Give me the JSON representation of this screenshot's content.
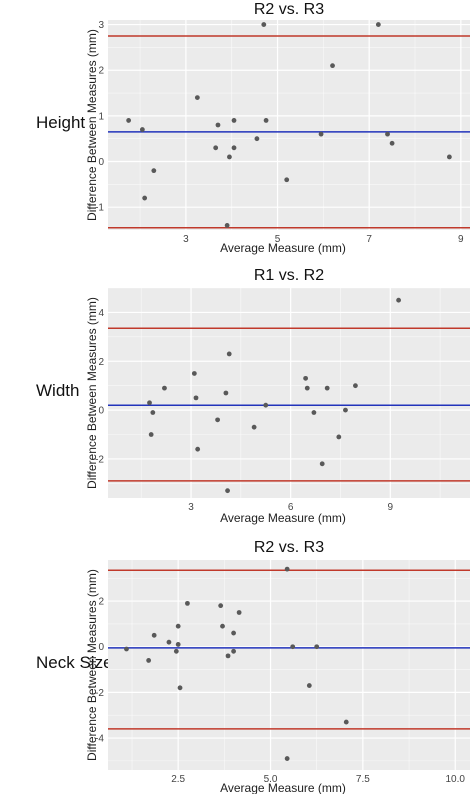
{
  "colors": {
    "panel_bg": "#ebebeb",
    "grid": "#ffffff",
    "point": "#595959",
    "limit_line": "#c0392b",
    "mean_line": "#2233bb"
  },
  "chart_data": [
    {
      "type": "scatter",
      "row_label": "Height",
      "title": "R2 vs. R3",
      "xlabel": "Average Measure (mm)",
      "ylabel": "Difference Between Measures (mm)",
      "xlim": [
        1.3,
        9.2
      ],
      "ylim": [
        -1.5,
        3.1
      ],
      "xticks": [
        3,
        5,
        7,
        9
      ],
      "yticks": [
        -1,
        0,
        1,
        2,
        3
      ],
      "mean": 0.65,
      "upper_limit": 2.75,
      "lower_limit": -1.45,
      "points": [
        {
          "x": 1.75,
          "y": 0.9
        },
        {
          "x": 2.05,
          "y": 0.7
        },
        {
          "x": 2.1,
          "y": -0.8
        },
        {
          "x": 2.3,
          "y": -0.2
        },
        {
          "x": 3.25,
          "y": 1.4
        },
        {
          "x": 3.65,
          "y": 0.3
        },
        {
          "x": 3.7,
          "y": 0.8
        },
        {
          "x": 3.9,
          "y": -1.4
        },
        {
          "x": 3.95,
          "y": 0.1
        },
        {
          "x": 4.05,
          "y": 0.3
        },
        {
          "x": 4.05,
          "y": 0.9
        },
        {
          "x": 4.55,
          "y": 0.5
        },
        {
          "x": 4.7,
          "y": 3.0
        },
        {
          "x": 4.75,
          "y": 0.9
        },
        {
          "x": 5.2,
          "y": -0.4
        },
        {
          "x": 5.95,
          "y": 0.6
        },
        {
          "x": 6.2,
          "y": 2.1
        },
        {
          "x": 7.2,
          "y": 3.0
        },
        {
          "x": 7.4,
          "y": 0.6
        },
        {
          "x": 7.5,
          "y": 0.4
        },
        {
          "x": 8.75,
          "y": 0.1
        }
      ]
    },
    {
      "type": "scatter",
      "row_label": "Width",
      "title": "R1 vs. R2",
      "xlabel": "Average Measure (mm)",
      "ylabel": "Difference Between Measures (mm)",
      "xlim": [
        0.5,
        11.4
      ],
      "ylim": [
        -3.6,
        5.0
      ],
      "xticks": [
        3,
        6,
        9
      ],
      "yticks": [
        -2,
        0,
        2,
        4
      ],
      "mean": 0.2,
      "upper_limit": 3.35,
      "lower_limit": -2.9,
      "points": [
        {
          "x": 1.75,
          "y": 0.3
        },
        {
          "x": 1.8,
          "y": -1.0
        },
        {
          "x": 1.85,
          "y": -0.1
        },
        {
          "x": 2.2,
          "y": 0.9
        },
        {
          "x": 3.1,
          "y": 1.5
        },
        {
          "x": 3.15,
          "y": 0.5
        },
        {
          "x": 3.2,
          "y": -1.6
        },
        {
          "x": 3.8,
          "y": -0.4
        },
        {
          "x": 4.05,
          "y": 0.7
        },
        {
          "x": 4.1,
          "y": -3.3
        },
        {
          "x": 4.15,
          "y": 2.3
        },
        {
          "x": 4.9,
          "y": -0.7
        },
        {
          "x": 5.25,
          "y": 0.2
        },
        {
          "x": 6.45,
          "y": 1.3
        },
        {
          "x": 6.5,
          "y": 0.9
        },
        {
          "x": 6.7,
          "y": -0.1
        },
        {
          "x": 6.95,
          "y": -2.2
        },
        {
          "x": 7.1,
          "y": 0.9
        },
        {
          "x": 7.45,
          "y": -1.1
        },
        {
          "x": 7.65,
          "y": 0.0
        },
        {
          "x": 7.95,
          "y": 1.0
        },
        {
          "x": 9.25,
          "y": 4.5
        }
      ]
    },
    {
      "type": "scatter",
      "row_label": "Neck Size",
      "title": "R2 vs. R3",
      "xlabel": "Average Measure (mm)",
      "ylabel": "Difference Between Measures (mm)",
      "xlim": [
        0.6,
        10.4
      ],
      "ylim": [
        -5.4,
        3.8
      ],
      "xticks": [
        2.5,
        5.0,
        7.5,
        10.0
      ],
      "xtick_labels": [
        "2.5",
        "5.0",
        "7.5",
        "10.0"
      ],
      "yticks": [
        -4,
        -2,
        0,
        2
      ],
      "mean": -0.05,
      "upper_limit": 3.35,
      "lower_limit": -3.6,
      "points": [
        {
          "x": 1.1,
          "y": -0.1
        },
        {
          "x": 1.7,
          "y": -0.6
        },
        {
          "x": 1.85,
          "y": 0.5
        },
        {
          "x": 2.25,
          "y": 0.2
        },
        {
          "x": 2.45,
          "y": -0.2
        },
        {
          "x": 2.5,
          "y": 0.1
        },
        {
          "x": 2.5,
          "y": 0.9
        },
        {
          "x": 2.55,
          "y": -1.8
        },
        {
          "x": 2.75,
          "y": 1.9
        },
        {
          "x": 3.65,
          "y": 1.8
        },
        {
          "x": 3.7,
          "y": 0.9
        },
        {
          "x": 3.85,
          "y": -0.4
        },
        {
          "x": 4.0,
          "y": 0.6
        },
        {
          "x": 4.0,
          "y": -0.2
        },
        {
          "x": 4.15,
          "y": 1.5
        },
        {
          "x": 5.45,
          "y": 3.4
        },
        {
          "x": 5.45,
          "y": -4.9
        },
        {
          "x": 5.6,
          "y": 0.0
        },
        {
          "x": 6.05,
          "y": -1.7
        },
        {
          "x": 6.25,
          "y": 0.0
        },
        {
          "x": 7.05,
          "y": -3.3
        }
      ]
    }
  ]
}
